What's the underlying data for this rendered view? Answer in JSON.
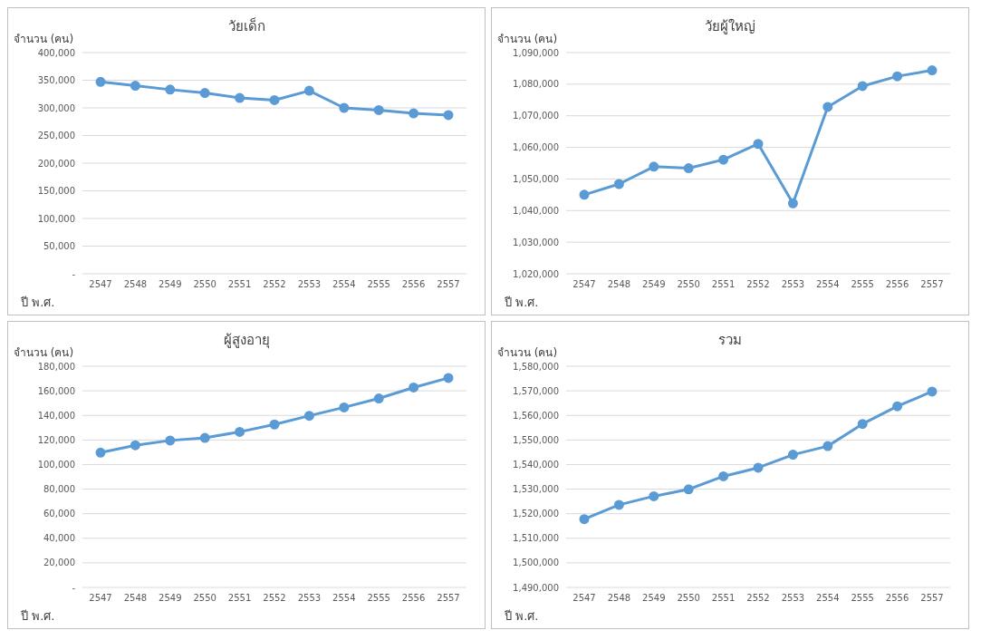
{
  "chart_data": [
    {
      "type": "line",
      "title": "วัยเด็ก",
      "ylabel": "จำนวน (คน)",
      "xlabel": "ปี พ.ศ.",
      "categories": [
        "2547",
        "2548",
        "2549",
        "2550",
        "2551",
        "2552",
        "2553",
        "2554",
        "2555",
        "2556",
        "2557"
      ],
      "series": [
        {
          "color": "#5b9bd5",
          "values": [
            347000,
            340000,
            333000,
            327000,
            318000,
            314000,
            331000,
            300000,
            296000,
            290000,
            287000
          ]
        }
      ],
      "ylim": [
        0,
        400000
      ],
      "yticks": [
        {
          "value": 0,
          "label": "-"
        },
        {
          "value": 50000,
          "label": "50,000"
        },
        {
          "value": 100000,
          "label": "100,000"
        },
        {
          "value": 150000,
          "label": "150,000"
        },
        {
          "value": 200000,
          "label": "200,000"
        },
        {
          "value": 250000,
          "label": "250,000"
        },
        {
          "value": 300000,
          "label": "300,000"
        },
        {
          "value": 350000,
          "label": "350,000"
        },
        {
          "value": 400000,
          "label": "400,000"
        }
      ],
      "grid": "y",
      "marker": "circle",
      "line_style": "solid"
    },
    {
      "type": "line",
      "title": "วัยผู้ใหญ่",
      "ylabel": "จำนวน (คน)",
      "xlabel": "ปี พ.ศ.",
      "categories": [
        "2547",
        "2548",
        "2549",
        "2550",
        "2551",
        "2552",
        "2553",
        "2554",
        "2555",
        "2556",
        "2557"
      ],
      "series": [
        {
          "color": "#5b9bd5",
          "values": [
            1045000,
            1048400,
            1053900,
            1053400,
            1056100,
            1061100,
            1042300,
            1072800,
            1079400,
            1082500,
            1084400
          ]
        }
      ],
      "ylim": [
        1020000,
        1090000
      ],
      "yticks": [
        {
          "value": 1020000,
          "label": "1,020,000"
        },
        {
          "value": 1030000,
          "label": "1,030,000"
        },
        {
          "value": 1040000,
          "label": "1,040,000"
        },
        {
          "value": 1050000,
          "label": "1,050,000"
        },
        {
          "value": 1060000,
          "label": "1,060,000"
        },
        {
          "value": 1070000,
          "label": "1,070,000"
        },
        {
          "value": 1080000,
          "label": "1,080,000"
        },
        {
          "value": 1090000,
          "label": "1,090,000"
        }
      ],
      "grid": "y",
      "marker": "circle",
      "line_style": "solid"
    },
    {
      "type": "line",
      "title": "ผู้สูงอายุ",
      "ylabel": "จำนวน (คน)",
      "xlabel": "ปี พ.ศ.",
      "categories": [
        "2547",
        "2548",
        "2549",
        "2550",
        "2551",
        "2552",
        "2553",
        "2554",
        "2555",
        "2556",
        "2557"
      ],
      "series": [
        {
          "color": "#5b9bd5",
          "values": [
            109700,
            115700,
            119600,
            121700,
            126600,
            132600,
            139700,
            146500,
            153800,
            162700,
            170500
          ]
        }
      ],
      "ylim": [
        0,
        180000
      ],
      "yticks": [
        {
          "value": 0,
          "label": "-"
        },
        {
          "value": 20000,
          "label": "20,000"
        },
        {
          "value": 40000,
          "label": "40,000"
        },
        {
          "value": 60000,
          "label": "60,000"
        },
        {
          "value": 80000,
          "label": "80,000"
        },
        {
          "value": 100000,
          "label": "100,000"
        },
        {
          "value": 120000,
          "label": "120,000"
        },
        {
          "value": 140000,
          "label": "140,000"
        },
        {
          "value": 160000,
          "label": "160,000"
        },
        {
          "value": 180000,
          "label": "180,000"
        }
      ],
      "grid": "y",
      "marker": "circle",
      "line_style": "solid"
    },
    {
      "type": "line",
      "title": "รวม",
      "ylabel": "จำนวน (คน)",
      "xlabel": "ปี พ.ศ.",
      "categories": [
        "2547",
        "2548",
        "2549",
        "2550",
        "2551",
        "2552",
        "2553",
        "2554",
        "2555",
        "2556",
        "2557"
      ],
      "series": [
        {
          "color": "#5b9bd5",
          "values": [
            1517800,
            1523600,
            1527100,
            1529900,
            1535200,
            1538700,
            1544000,
            1547500,
            1556500,
            1563700,
            1569700
          ]
        }
      ],
      "ylim": [
        1490000,
        1580000
      ],
      "yticks": [
        {
          "value": 1490000,
          "label": "1,490,000"
        },
        {
          "value": 1500000,
          "label": "1,500,000"
        },
        {
          "value": 1510000,
          "label": "1,510,000"
        },
        {
          "value": 1520000,
          "label": "1,520,000"
        },
        {
          "value": 1530000,
          "label": "1,530,000"
        },
        {
          "value": 1540000,
          "label": "1,540,000"
        },
        {
          "value": 1550000,
          "label": "1,550,000"
        },
        {
          "value": 1560000,
          "label": "1,560,000"
        },
        {
          "value": 1570000,
          "label": "1,570,000"
        },
        {
          "value": 1580000,
          "label": "1,580,000"
        }
      ],
      "grid": "y",
      "marker": "circle",
      "line_style": "solid"
    }
  ]
}
